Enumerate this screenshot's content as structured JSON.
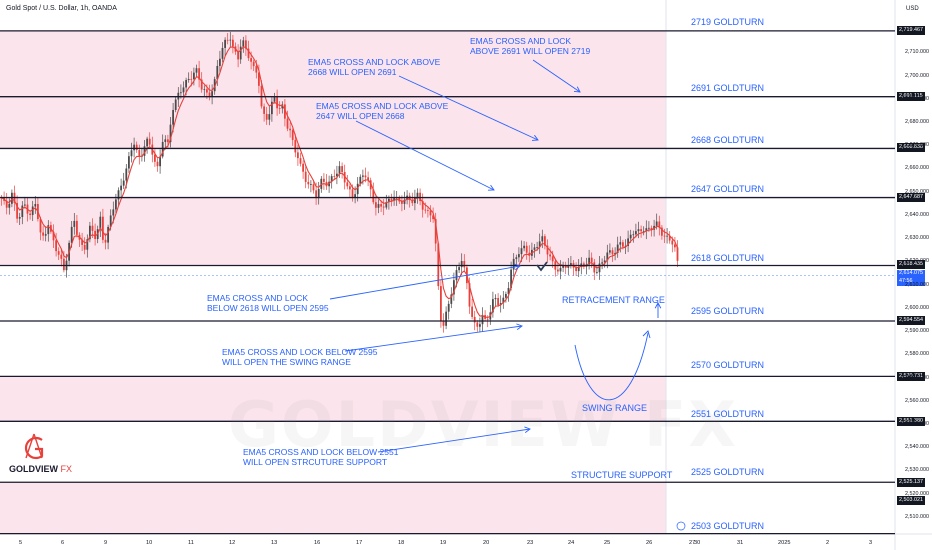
{
  "header": {
    "title": "Gold Spot / U.S. Dollar, 1h, OANDA",
    "currency": "USD"
  },
  "brand": {
    "logo_text": "GOLDVIEW",
    "logo_suffix": "FX",
    "watermark": "GOLDVIEW FX"
  },
  "colors": {
    "zone_fill": "#fce4ec",
    "level_line": "#1a1a2e",
    "annotation_blue": "#2962ff",
    "candle_up": "#4a4a4a",
    "candle_down": "#e8413c",
    "ema": "#e8413c"
  },
  "chart_data": {
    "type": "candlestick",
    "title": "Gold Spot / U.S. Dollar, 1h, OANDA",
    "ylim": [
      2500,
      2725
    ],
    "yticks": [
      2510,
      2520,
      2530,
      2540,
      2550,
      2560,
      2570,
      2580,
      2590,
      2600,
      2610,
      2620,
      2630,
      2640,
      2650,
      2660,
      2670,
      2680,
      2690,
      2700,
      2710
    ],
    "xtick_labels": [
      "5",
      "6",
      "9",
      "10",
      "11",
      "12",
      "13",
      "16",
      "17",
      "18",
      "19",
      "20",
      "23",
      "24",
      "25",
      "26",
      "27",
      "30",
      "31",
      "2025",
      "2",
      "3"
    ],
    "levels": [
      {
        "price": 2719.467,
        "price_label": "2,719.467",
        "name": "2719 GOLDTURN"
      },
      {
        "price": 2691.115,
        "price_label": "2,691.115",
        "name": "2691 GOLDTURN"
      },
      {
        "price": 2668.838,
        "price_label": "2,668.838",
        "name": "2668 GOLDTURN"
      },
      {
        "price": 2647.687,
        "price_label": "2,647.687",
        "name": "2647 GOLDTURN"
      },
      {
        "price": 2618.435,
        "price_label": "2,618.435",
        "name": "2618 GOLDTURN"
      },
      {
        "price": 2594.554,
        "price_label": "2,594.554",
        "name": "2595 GOLDTURN"
      },
      {
        "price": 2570.731,
        "price_label": "2,570.731",
        "name": "2570 GOLDTURN"
      },
      {
        "price": 2551.38,
        "price_label": "2,551.380",
        "name": "2551 GOLDTURN"
      },
      {
        "price": 2525.137,
        "price_label": "2,525.137",
        "name": "2525 GOLDTURN"
      },
      {
        "price": 2503.021,
        "price_label": "2,503.021",
        "name": "2503 GOLDTURN"
      }
    ],
    "zones": [
      {
        "from": 2668.838,
        "to": 2719.467
      },
      {
        "from": 2618.435,
        "to": 2647.687
      },
      {
        "from": 2551.38,
        "to": 2570.731
      },
      {
        "from": 2503.021,
        "to": 2525.137
      }
    ],
    "current_price": {
      "value": 2614.075,
      "label": "2,614.075",
      "countdown": "47:56"
    },
    "close_path": [
      [
        0,
        2648
      ],
      [
        6,
        2643
      ],
      [
        12,
        2650
      ],
      [
        18,
        2637
      ],
      [
        24,
        2645
      ],
      [
        30,
        2641
      ],
      [
        36,
        2645
      ],
      [
        40,
        2632
      ],
      [
        44,
        2630
      ],
      [
        48,
        2638
      ],
      [
        52,
        2630
      ],
      [
        56,
        2625
      ],
      [
        60,
        2622
      ],
      [
        64,
        2617
      ],
      [
        70,
        2630
      ],
      [
        74,
        2638
      ],
      [
        78,
        2630
      ],
      [
        84,
        2626
      ],
      [
        90,
        2634
      ],
      [
        96,
        2630
      ],
      [
        100,
        2640
      ],
      [
        104,
        2627
      ],
      [
        110,
        2637
      ],
      [
        116,
        2648
      ],
      [
        122,
        2654
      ],
      [
        128,
        2662
      ],
      [
        134,
        2672
      ],
      [
        140,
        2664
      ],
      [
        146,
        2672
      ],
      [
        152,
        2668
      ],
      [
        158,
        2660
      ],
      [
        163,
        2673
      ],
      [
        168,
        2670
      ],
      [
        172,
        2686
      ],
      [
        178,
        2692
      ],
      [
        184,
        2695
      ],
      [
        190,
        2700
      ],
      [
        196,
        2703
      ],
      [
        202,
        2694
      ],
      [
        208,
        2692
      ],
      [
        214,
        2696
      ],
      [
        218,
        2705
      ],
      [
        224,
        2714
      ],
      [
        230,
        2718
      ],
      [
        234,
        2710
      ],
      [
        238,
        2707
      ],
      [
        242,
        2716
      ],
      [
        246,
        2712
      ],
      [
        250,
        2708
      ],
      [
        254,
        2702
      ],
      [
        258,
        2700
      ],
      [
        262,
        2685
      ],
      [
        266,
        2682
      ],
      [
        270,
        2685
      ],
      [
        274,
        2690
      ],
      [
        278,
        2686
      ],
      [
        282,
        2688
      ],
      [
        286,
        2680
      ],
      [
        290,
        2676
      ],
      [
        294,
        2668
      ],
      [
        298,
        2666
      ],
      [
        302,
        2660
      ],
      [
        306,
        2655
      ],
      [
        310,
        2652
      ],
      [
        316,
        2649
      ],
      [
        322,
        2656
      ],
      [
        328,
        2652
      ],
      [
        334,
        2658
      ],
      [
        340,
        2661
      ],
      [
        346,
        2653
      ],
      [
        352,
        2648
      ],
      [
        358,
        2654
      ],
      [
        364,
        2658
      ],
      [
        370,
        2652
      ],
      [
        376,
        2644
      ],
      [
        382,
        2643
      ],
      [
        388,
        2646
      ],
      [
        394,
        2649
      ],
      [
        400,
        2644
      ],
      [
        406,
        2648
      ],
      [
        412,
        2647
      ],
      [
        418,
        2648
      ],
      [
        424,
        2642
      ],
      [
        430,
        2642
      ],
      [
        434,
        2638
      ],
      [
        438,
        2610
      ],
      [
        442,
        2590
      ],
      [
        446,
        2598
      ],
      [
        450,
        2605
      ],
      [
        454,
        2611
      ],
      [
        458,
        2617
      ],
      [
        462,
        2622
      ],
      [
        466,
        2614
      ],
      [
        470,
        2600
      ],
      [
        474,
        2592
      ],
      [
        478,
        2592
      ],
      [
        482,
        2598
      ],
      [
        486,
        2594
      ],
      [
        490,
        2598
      ],
      [
        494,
        2604
      ],
      [
        498,
        2603
      ],
      [
        504,
        2604
      ],
      [
        508,
        2608
      ],
      [
        512,
        2618
      ],
      [
        518,
        2625
      ],
      [
        524,
        2626
      ],
      [
        530,
        2622
      ],
      [
        536,
        2628
      ],
      [
        542,
        2630
      ],
      [
        548,
        2623
      ],
      [
        554,
        2619
      ],
      [
        560,
        2616
      ],
      [
        566,
        2618
      ],
      [
        572,
        2619
      ],
      [
        578,
        2617
      ],
      [
        584,
        2618
      ],
      [
        590,
        2622
      ],
      [
        596,
        2615
      ],
      [
        602,
        2619
      ],
      [
        608,
        2625
      ],
      [
        614,
        2624
      ],
      [
        620,
        2627
      ],
      [
        626,
        2628
      ],
      [
        632,
        2633
      ],
      [
        638,
        2632
      ],
      [
        644,
        2635
      ],
      [
        650,
        2634
      ],
      [
        656,
        2636
      ],
      [
        662,
        2633
      ],
      [
        668,
        2630
      ],
      [
        674,
        2627
      ],
      [
        680,
        2614
      ]
    ],
    "annotations": [
      {
        "text": "EMA5 CROSS AND LOCK\nABOVE 2691 WILL OPEN 2719"
      },
      {
        "text": "EMA5 CROSS AND LOCK ABOVE\n2668 WILL OPEN 2691"
      },
      {
        "text": "EMA5 CROSS AND LOCK ABOVE\n2647 WILL OPEN 2668"
      },
      {
        "text": "EMA5 CROSS AND LOCK\nBELOW 2618 WILL OPEN 2595"
      },
      {
        "text": "EMA5 CROSS AND LOCK BELOW 2595\nWILL OPEN THE SWING RANGE"
      },
      {
        "text": "EMA5 CROSS AND LOCK BELOW 2551\nWILL OPEN STRCUTURE SUPPORT"
      },
      {
        "text": "RETRACEMENT RANGE"
      },
      {
        "text": "SWING RANGE"
      },
      {
        "text": "STRUCTURE SUPPORT"
      }
    ]
  }
}
